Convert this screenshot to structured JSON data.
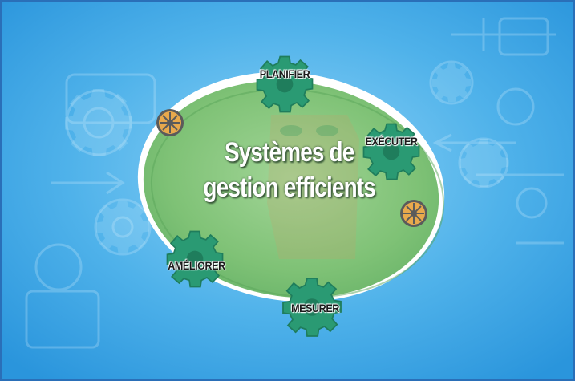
{
  "diagram": {
    "title_line1": "Systèmes de",
    "title_line2": "gestion efficients",
    "steps": [
      {
        "label": "PLANIFIER"
      },
      {
        "label": "EXÉCUTER"
      },
      {
        "label": "MESURER"
      },
      {
        "label": "AMÉLIORER"
      }
    ]
  },
  "colors": {
    "background": "#3aa6e6",
    "background_light": "#7fcaf2",
    "ellipse_fill": "#86c77e",
    "ellipse_rim": "#ffffff",
    "gear": "#2a9a73",
    "gear_dark": "#1f7d5c",
    "title_text": "#ffffff"
  },
  "icons": [
    "gear-icon",
    "wheel-icon"
  ]
}
